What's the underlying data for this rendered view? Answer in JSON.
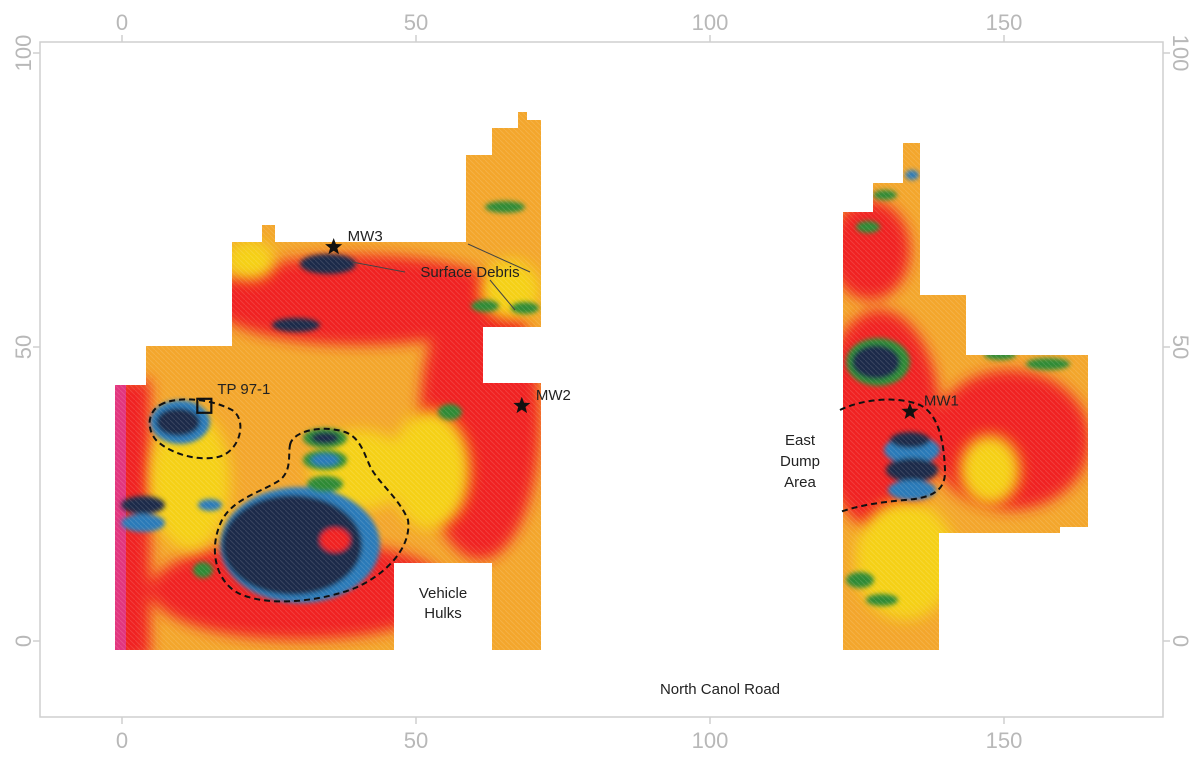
{
  "map": {
    "x_axis": {
      "ticks": [
        "0",
        "50",
        "100",
        "150"
      ],
      "range": [
        -14,
        180
      ]
    },
    "y_axis": {
      "ticks": [
        "0",
        "50",
        "100"
      ],
      "range": [
        -12,
        102
      ]
    },
    "markers": [
      {
        "id": "mw3",
        "label": "MW3",
        "x": 36,
        "y": 67,
        "shape": "star"
      },
      {
        "id": "mw2",
        "label": "MW2",
        "x": 68,
        "y": 40,
        "shape": "star"
      },
      {
        "id": "mw1",
        "label": "MW1",
        "x": 134,
        "y": 39,
        "shape": "star"
      },
      {
        "id": "tp97-1",
        "label": "TP 97-1",
        "x": 14,
        "y": 40,
        "shape": "square"
      }
    ],
    "annotations": {
      "surface_debris": "Surface Debris",
      "vehicle_hulks_line1": "Vehicle",
      "vehicle_hulks_line2": "Hulks",
      "east_dump_line1": "East",
      "east_dump_line2": "Dump",
      "east_dump_line3": "Area",
      "road": "North Canol Road"
    },
    "colors": {
      "high": "#f02020",
      "mid": "#f5d016",
      "low_green": "#2e8a34",
      "low_blue": "#2a7ab8",
      "lowest": "#1b2b48",
      "edge_pink": "#e2357e"
    }
  }
}
